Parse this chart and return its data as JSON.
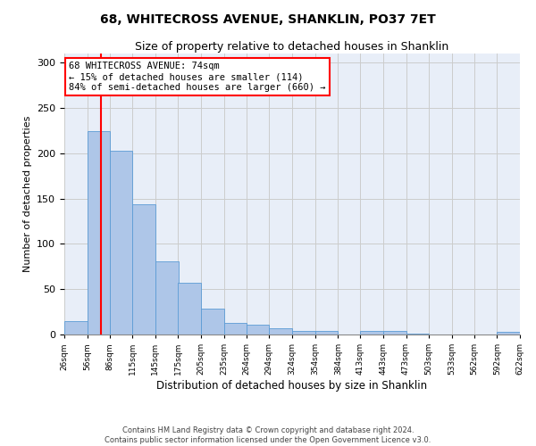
{
  "title": "68, WHITECROSS AVENUE, SHANKLIN, PO37 7ET",
  "subtitle": "Size of property relative to detached houses in Shanklin",
  "xlabel": "Distribution of detached houses by size in Shanklin",
  "ylabel": "Number of detached properties",
  "bar_values": [
    15,
    224,
    203,
    144,
    81,
    57,
    29,
    13,
    11,
    7,
    4,
    4,
    0,
    4,
    4,
    1,
    0,
    0,
    0,
    3
  ],
  "bin_edges": [
    26,
    56,
    86,
    115,
    145,
    175,
    205,
    235,
    264,
    294,
    324,
    354,
    384,
    413,
    443,
    473,
    503,
    533,
    562,
    592,
    622
  ],
  "tick_labels": [
    "26sqm",
    "56sqm",
    "86sqm",
    "115sqm",
    "145sqm",
    "175sqm",
    "205sqm",
    "235sqm",
    "264sqm",
    "294sqm",
    "324sqm",
    "354sqm",
    "384sqm",
    "413sqm",
    "443sqm",
    "473sqm",
    "503sqm",
    "533sqm",
    "562sqm",
    "592sqm",
    "622sqm"
  ],
  "bar_color": "#aec6e8",
  "bar_edge_color": "#5b9bd5",
  "vline_x": 74,
  "vline_color": "red",
  "annotation_line1": "68 WHITECROSS AVENUE: 74sqm",
  "annotation_line2": "← 15% of detached houses are smaller (114)",
  "annotation_line3": "84% of semi-detached houses are larger (660) →",
  "annotation_box_color": "white",
  "annotation_box_edge": "red",
  "ylim": [
    0,
    310
  ],
  "yticks": [
    0,
    50,
    100,
    150,
    200,
    250,
    300
  ],
  "grid_color": "#cccccc",
  "bg_color": "#e8eef8",
  "footer_text": "Contains HM Land Registry data © Crown copyright and database right 2024.\nContains public sector information licensed under the Open Government Licence v3.0.",
  "title_fontsize": 10,
  "subtitle_fontsize": 9,
  "annotation_fontsize": 7.5,
  "ylabel_fontsize": 8,
  "xlabel_fontsize": 8.5
}
